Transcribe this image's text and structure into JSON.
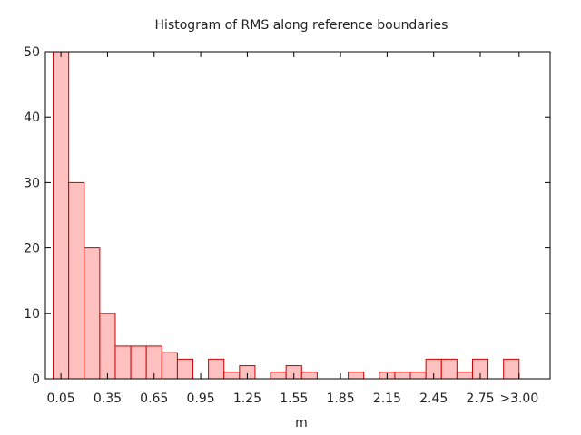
{
  "chart_data": {
    "type": "bar",
    "title": "Histogram of RMS along reference boundaries",
    "xlabel": "m",
    "ylabel": "",
    "ylim": [
      0,
      50
    ],
    "yticks": [
      0,
      10,
      20,
      30,
      40,
      50
    ],
    "bins": [
      0.05,
      0.15,
      0.25,
      0.35,
      0.45,
      0.55,
      0.65,
      0.75,
      0.85,
      0.95,
      1.05,
      1.15,
      1.25,
      1.35,
      1.45,
      1.55,
      1.65,
      1.75,
      1.85,
      1.95,
      2.05,
      2.15,
      2.25,
      2.35,
      2.45,
      2.55,
      2.65,
      2.75,
      2.85,
      2.95
    ],
    "values": [
      50,
      30,
      20,
      10,
      5,
      5,
      5,
      4,
      3,
      0,
      3,
      1,
      2,
      0,
      1,
      2,
      1,
      0,
      0,
      1,
      0,
      1,
      1,
      1,
      3,
      3,
      1,
      3,
      0,
      3
    ],
    "xtick_labels": [
      "0.05",
      "0.35",
      "0.65",
      "0.95",
      "1.25",
      "1.55",
      "1.85",
      "2.15",
      "2.45",
      "2.75",
      ">3.00"
    ],
    "xtick_positions": [
      0.05,
      0.35,
      0.65,
      0.95,
      1.25,
      1.55,
      1.85,
      2.15,
      2.45,
      2.75,
      3.0
    ],
    "xlim": [
      -0.05,
      3.2
    ],
    "grid": false,
    "legend": "none",
    "bar_fill": "#ffc0c0",
    "bar_stroke": "#cc0000"
  }
}
